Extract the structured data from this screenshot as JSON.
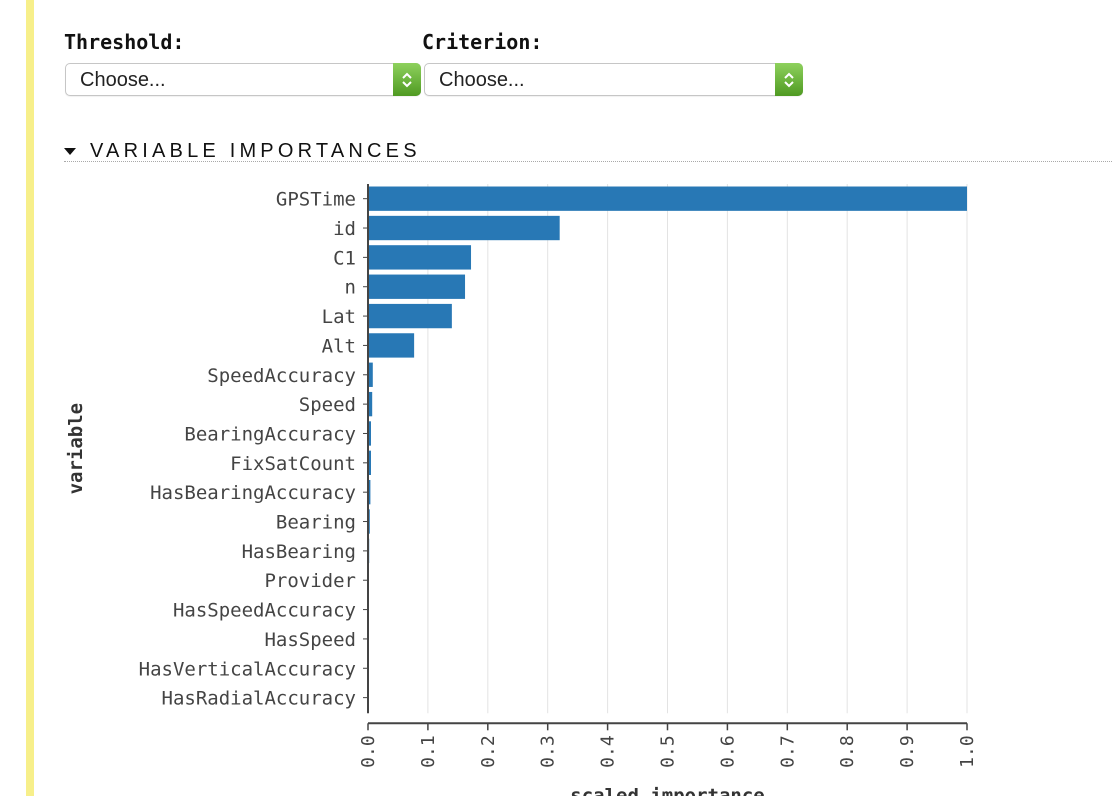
{
  "controls": {
    "threshold_label": "Threshold:",
    "threshold_value": "Choose...",
    "criterion_label": "Criterion:",
    "criterion_value": "Choose..."
  },
  "section": {
    "title": "VARIABLE IMPORTANCES"
  },
  "colors": {
    "bar": "#2878b5",
    "accent_bar": "#f7ef8a",
    "select_arrow": "#6cb33f"
  },
  "chart_data": {
    "type": "bar",
    "orientation": "horizontal",
    "xlabel": "scaled_importance",
    "ylabel": "variable",
    "xlim": [
      0,
      1
    ],
    "xticks": [
      0.0,
      0.1,
      0.2,
      0.3,
      0.4,
      0.5,
      0.6,
      0.7,
      0.8,
      0.9,
      1.0
    ],
    "grid": true,
    "categories": [
      "GPSTime",
      "id",
      "C1",
      "n",
      "Lat",
      "Alt",
      "SpeedAccuracy",
      "Speed",
      "BearingAccuracy",
      "FixSatCount",
      "HasBearingAccuracy",
      "Bearing",
      "HasBearing",
      "Provider",
      "HasSpeedAccuracy",
      "HasSpeed",
      "HasVerticalAccuracy",
      "HasRadialAccuracy"
    ],
    "values": [
      1.0,
      0.32,
      0.172,
      0.162,
      0.14,
      0.077,
      0.008,
      0.007,
      0.005,
      0.005,
      0.004,
      0.003,
      0.002,
      0.001,
      0.0005,
      0.0003,
      0.0002,
      0.0002
    ]
  }
}
